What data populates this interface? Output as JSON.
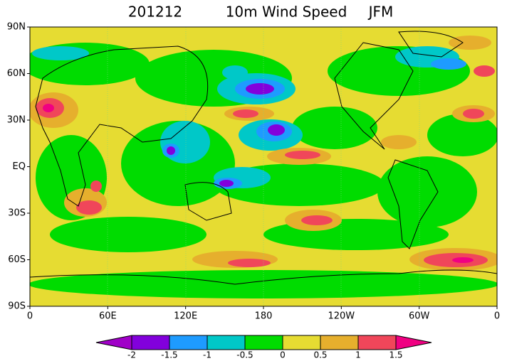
{
  "title": [
    "201212",
    "10m Wind Speed",
    "JFM"
  ],
  "lat_labels": [
    "90N",
    "60N",
    "30N",
    "EQ",
    "30S",
    "60S",
    "90S"
  ],
  "lon_labels": [
    "0",
    "60E",
    "120E",
    "180",
    "120W",
    "60W",
    "0"
  ],
  "colorbar": {
    "levels": [
      -2,
      -1.5,
      -1,
      -0.5,
      0,
      0.5,
      1,
      1.5
    ],
    "colors": [
      "#a000c8",
      "#8200dc",
      "#1e9bff",
      "#00c8c8",
      "#00dc00",
      "#e6dc32",
      "#e6af2d",
      "#f0465a",
      "#f00082"
    ]
  }
}
